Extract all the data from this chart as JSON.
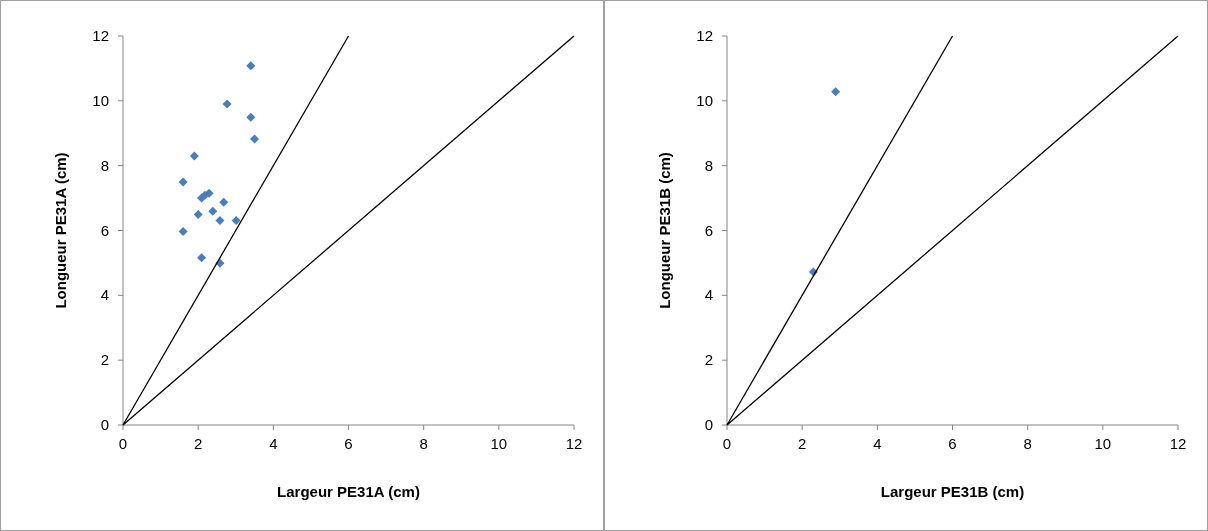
{
  "chart_data": [
    {
      "type": "scatter",
      "xlabel": "Largeur PE31A (cm)",
      "ylabel": "Longueur PE31A (cm)",
      "xlim": [
        0,
        12
      ],
      "ylim": [
        0,
        12
      ],
      "xticks": [
        0,
        2,
        4,
        6,
        8,
        10,
        12
      ],
      "yticks": [
        0,
        2,
        4,
        6,
        8,
        10,
        12
      ],
      "grid": false,
      "series": [
        {
          "color": "#4a7ebb",
          "marker": "diamond",
          "x": [
            3.4,
            2.77,
            3.4,
            3.5,
            1.9,
            1.6,
            2.09,
            2.18,
            2.29,
            2.68,
            2.0,
            2.39,
            2.58,
            3.01,
            1.6,
            2.09,
            2.58
          ],
          "values": [
            11.08,
            9.9,
            9.49,
            8.82,
            8.3,
            7.5,
            7.0,
            7.09,
            7.15,
            6.87,
            6.49,
            6.59,
            6.31,
            6.31,
            5.97,
            5.16,
            4.99
          ]
        },
        {
          "type": "line",
          "color": "#000000",
          "marker": "none",
          "x": [
            0,
            6
          ],
          "values": [
            0,
            12
          ]
        },
        {
          "type": "line",
          "color": "#000000",
          "marker": "none",
          "x": [
            0,
            12
          ],
          "values": [
            0,
            12
          ]
        }
      ]
    },
    {
      "type": "scatter",
      "xlabel": "Largeur PE31B (cm)",
      "ylabel": "Longueur PE31B (cm)",
      "xlim": [
        0,
        12
      ],
      "ylim": [
        0,
        12
      ],
      "xticks": [
        0,
        2,
        4,
        6,
        8,
        10,
        12
      ],
      "yticks": [
        0,
        2,
        4,
        6,
        8,
        10,
        12
      ],
      "grid": false,
      "series": [
        {
          "color": "#4a7ebb",
          "marker": "diamond",
          "x": [
            2.89,
            2.3
          ],
          "values": [
            10.28,
            4.72
          ]
        },
        {
          "type": "line",
          "color": "#000000",
          "marker": "none",
          "x": [
            0,
            6
          ],
          "values": [
            0,
            12
          ]
        },
        {
          "type": "line",
          "color": "#000000",
          "marker": "none",
          "x": [
            0,
            12
          ],
          "values": [
            0,
            12
          ]
        }
      ]
    }
  ]
}
